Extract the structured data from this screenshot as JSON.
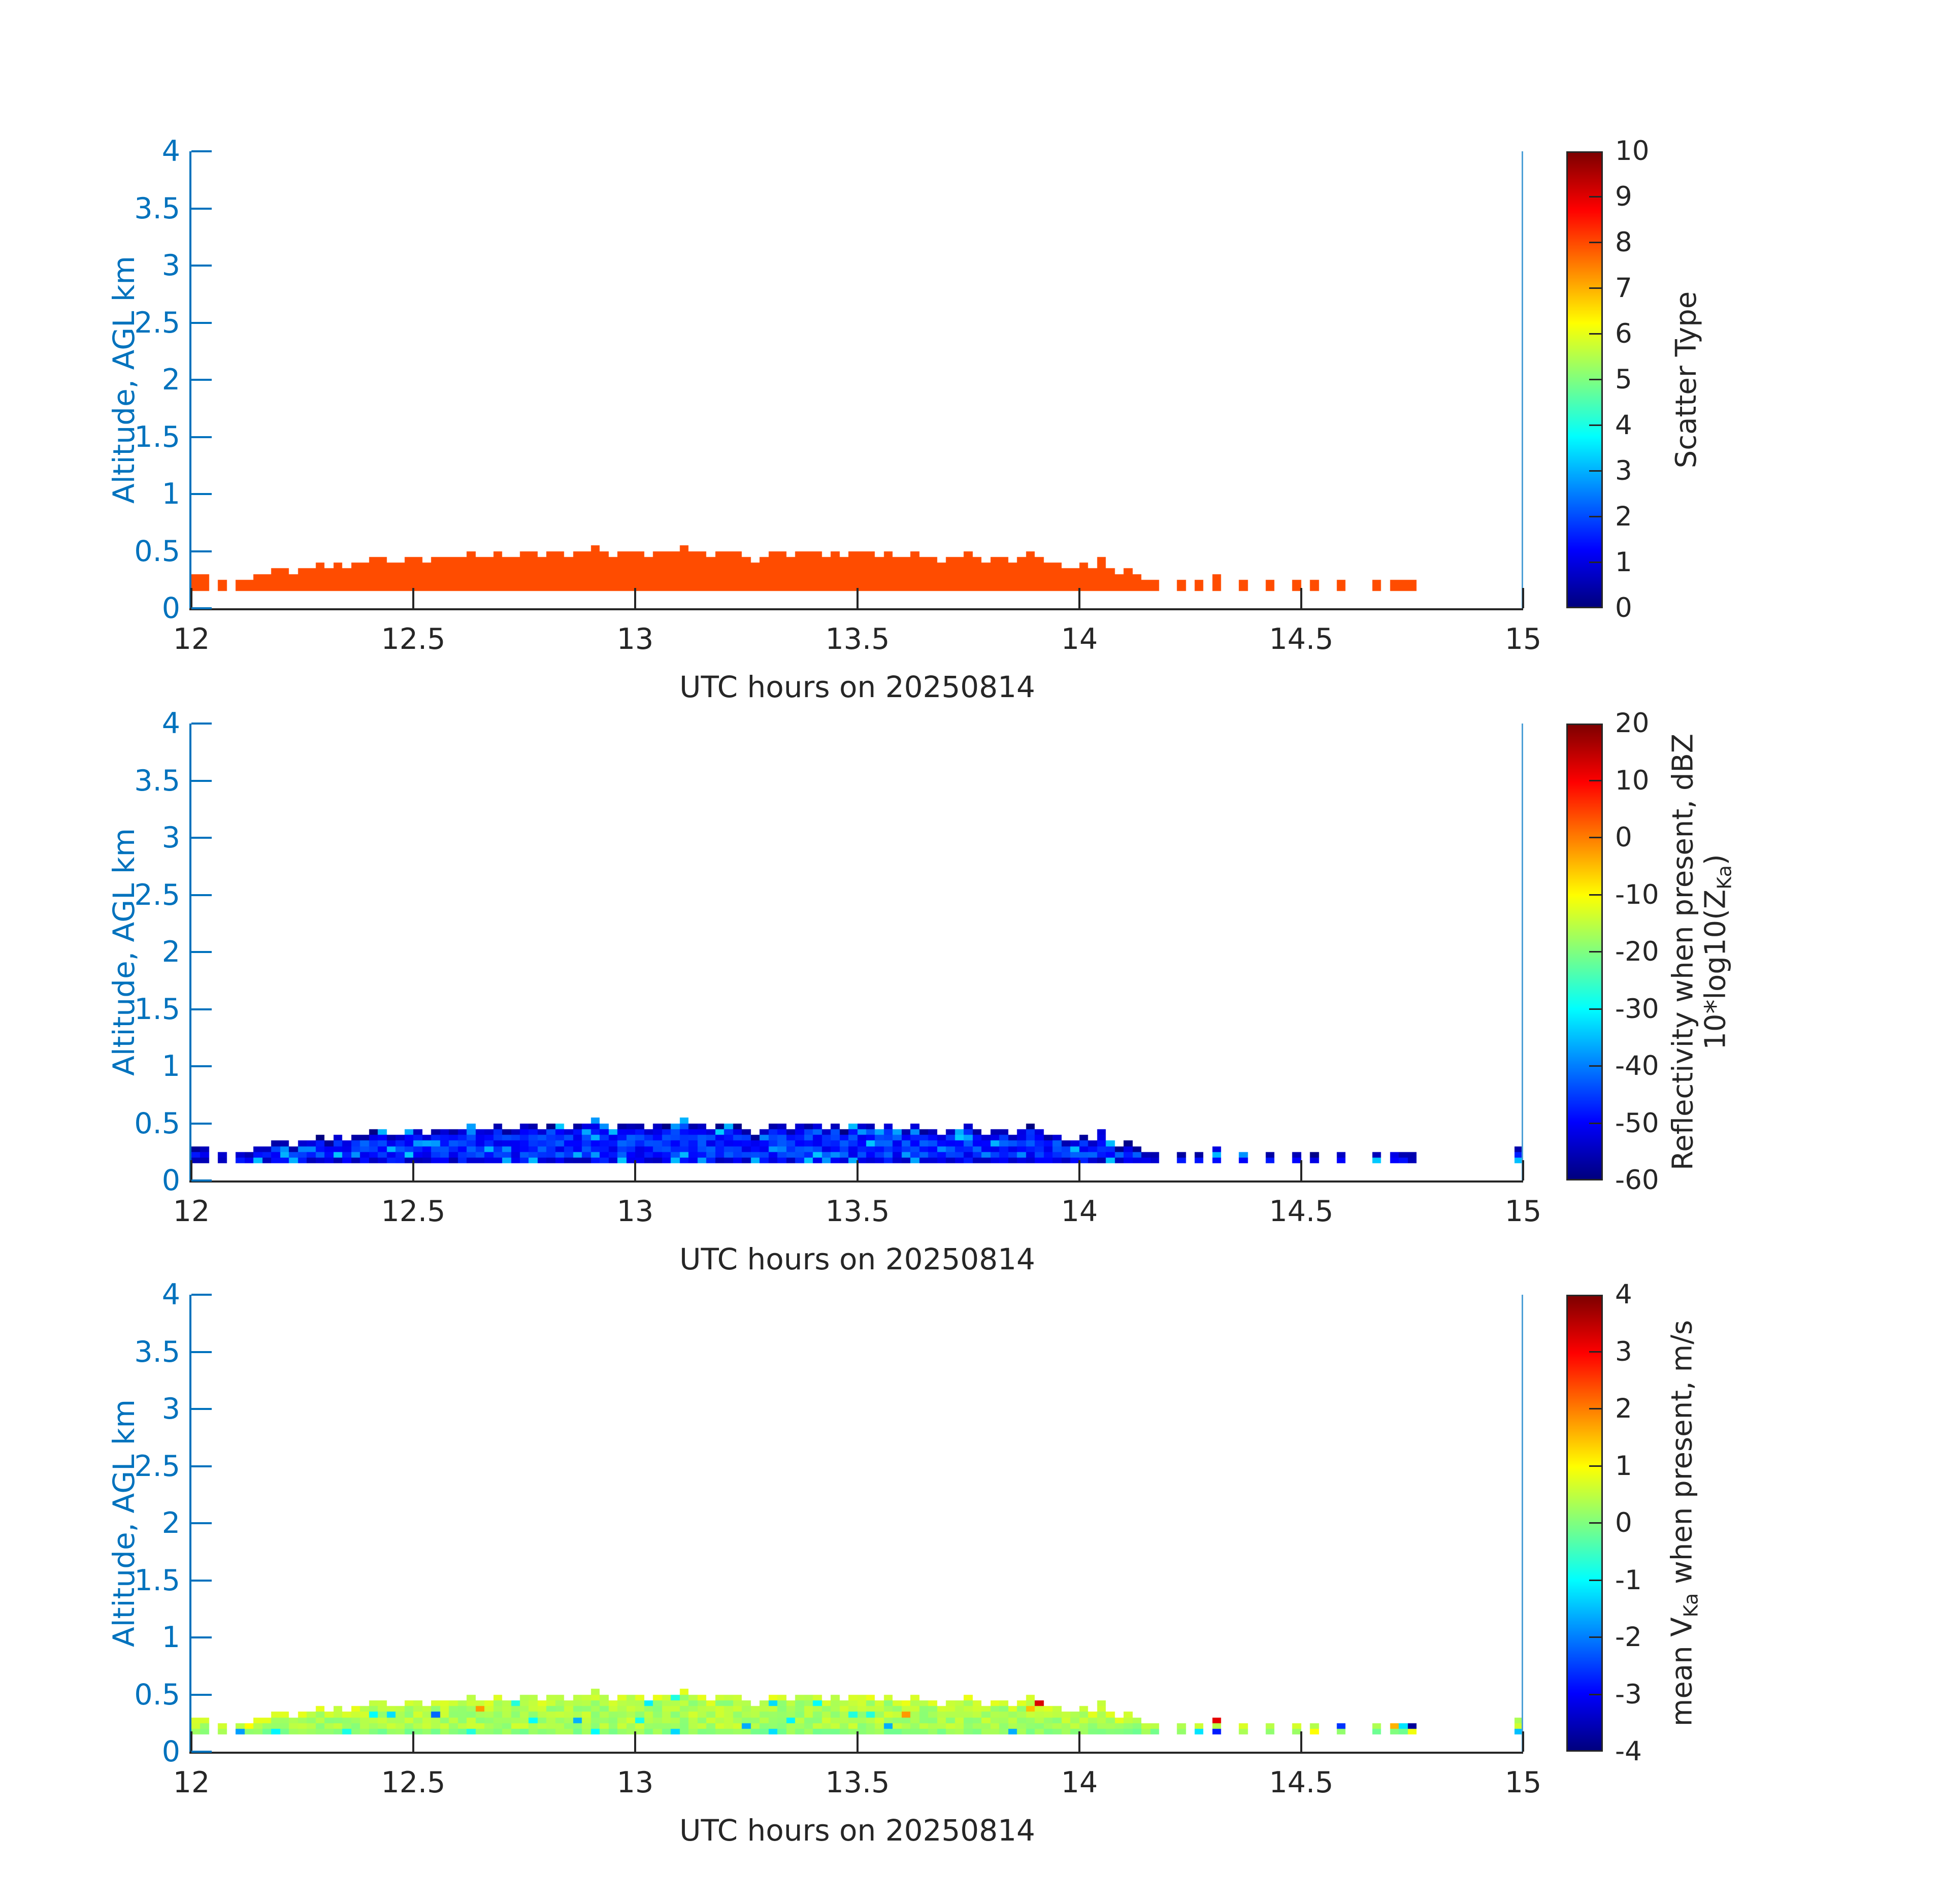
{
  "axes": {
    "x": {
      "label": "UTC hours on 20250814",
      "min": 12,
      "max": 15,
      "tick_values": [
        12,
        12.5,
        13,
        13.5,
        14,
        14.5,
        15
      ],
      "tick_labels": [
        "12",
        "12.5",
        "13",
        "13.5",
        "14",
        "14.5",
        "15"
      ],
      "color": "#262626"
    },
    "y": {
      "label": "Altitude, AGL km",
      "min": 0,
      "max": 4,
      "tick_values": [
        0,
        0.5,
        1,
        1.5,
        2,
        2.5,
        3,
        3.5,
        4
      ],
      "tick_labels": [
        "0",
        "0.5",
        "1",
        "1.5",
        "2",
        "2.5",
        "3",
        "3.5",
        "4"
      ],
      "color": "#0072BD"
    }
  },
  "chart_data": {
    "type": "heatmap",
    "colormap": "jet",
    "x": {
      "label": "UTC hours on 20250814",
      "range": [
        12,
        15
      ],
      "bin_hours": 0.02
    },
    "y": {
      "label": "Altitude, AGL km",
      "range": [
        0,
        4
      ],
      "bin_km": 0.05,
      "base_km": 0.15
    },
    "note": "columns = [UTC_hour_start, echo_top_km]; echo base is 0.15 km AGL for every occupied column; same occupancy mask for all three panels",
    "columns": [
      [
        12.0,
        0.3
      ],
      [
        12.02,
        0.3
      ],
      [
        12.06,
        0.25
      ],
      [
        12.1,
        0.25
      ],
      [
        12.12,
        0.25
      ],
      [
        12.14,
        0.3
      ],
      [
        12.16,
        0.3
      ],
      [
        12.18,
        0.35
      ],
      [
        12.2,
        0.35
      ],
      [
        12.22,
        0.3
      ],
      [
        12.24,
        0.35
      ],
      [
        12.26,
        0.35
      ],
      [
        12.28,
        0.4
      ],
      [
        12.3,
        0.35
      ],
      [
        12.32,
        0.4
      ],
      [
        12.34,
        0.35
      ],
      [
        12.36,
        0.4
      ],
      [
        12.38,
        0.4
      ],
      [
        12.4,
        0.45
      ],
      [
        12.42,
        0.45
      ],
      [
        12.44,
        0.4
      ],
      [
        12.46,
        0.4
      ],
      [
        12.48,
        0.45
      ],
      [
        12.5,
        0.45
      ],
      [
        12.52,
        0.4
      ],
      [
        12.54,
        0.45
      ],
      [
        12.56,
        0.45
      ],
      [
        12.58,
        0.45
      ],
      [
        12.6,
        0.45
      ],
      [
        12.62,
        0.5
      ],
      [
        12.64,
        0.45
      ],
      [
        12.66,
        0.45
      ],
      [
        12.68,
        0.5
      ],
      [
        12.7,
        0.45
      ],
      [
        12.72,
        0.45
      ],
      [
        12.74,
        0.5
      ],
      [
        12.76,
        0.5
      ],
      [
        12.78,
        0.45
      ],
      [
        12.8,
        0.5
      ],
      [
        12.82,
        0.5
      ],
      [
        12.84,
        0.45
      ],
      [
        12.86,
        0.5
      ],
      [
        12.88,
        0.5
      ],
      [
        12.9,
        0.55
      ],
      [
        12.92,
        0.5
      ],
      [
        12.94,
        0.45
      ],
      [
        12.96,
        0.5
      ],
      [
        12.98,
        0.5
      ],
      [
        13.0,
        0.5
      ],
      [
        13.02,
        0.45
      ],
      [
        13.04,
        0.5
      ],
      [
        13.06,
        0.5
      ],
      [
        13.08,
        0.5
      ],
      [
        13.1,
        0.55
      ],
      [
        13.12,
        0.5
      ],
      [
        13.14,
        0.5
      ],
      [
        13.16,
        0.45
      ],
      [
        13.18,
        0.5
      ],
      [
        13.2,
        0.5
      ],
      [
        13.22,
        0.5
      ],
      [
        13.24,
        0.45
      ],
      [
        13.26,
        0.4
      ],
      [
        13.28,
        0.45
      ],
      [
        13.3,
        0.5
      ],
      [
        13.32,
        0.5
      ],
      [
        13.34,
        0.45
      ],
      [
        13.36,
        0.5
      ],
      [
        13.38,
        0.5
      ],
      [
        13.4,
        0.5
      ],
      [
        13.42,
        0.45
      ],
      [
        13.44,
        0.5
      ],
      [
        13.46,
        0.45
      ],
      [
        13.48,
        0.5
      ],
      [
        13.5,
        0.5
      ],
      [
        13.52,
        0.5
      ],
      [
        13.54,
        0.45
      ],
      [
        13.56,
        0.5
      ],
      [
        13.58,
        0.45
      ],
      [
        13.6,
        0.45
      ],
      [
        13.62,
        0.5
      ],
      [
        13.64,
        0.45
      ],
      [
        13.66,
        0.45
      ],
      [
        13.68,
        0.4
      ],
      [
        13.7,
        0.45
      ],
      [
        13.72,
        0.45
      ],
      [
        13.74,
        0.5
      ],
      [
        13.76,
        0.45
      ],
      [
        13.78,
        0.4
      ],
      [
        13.8,
        0.45
      ],
      [
        13.82,
        0.45
      ],
      [
        13.84,
        0.4
      ],
      [
        13.86,
        0.45
      ],
      [
        13.88,
        0.5
      ],
      [
        13.9,
        0.45
      ],
      [
        13.92,
        0.4
      ],
      [
        13.94,
        0.4
      ],
      [
        13.96,
        0.35
      ],
      [
        13.98,
        0.35
      ],
      [
        14.0,
        0.4
      ],
      [
        14.02,
        0.35
      ],
      [
        14.04,
        0.45
      ],
      [
        14.06,
        0.35
      ],
      [
        14.08,
        0.3
      ],
      [
        14.1,
        0.35
      ],
      [
        14.12,
        0.3
      ],
      [
        14.14,
        0.25
      ],
      [
        14.16,
        0.25
      ],
      [
        14.22,
        0.25
      ],
      [
        14.26,
        0.25
      ],
      [
        14.3,
        0.3
      ],
      [
        14.36,
        0.25
      ],
      [
        14.42,
        0.25
      ],
      [
        14.48,
        0.25
      ],
      [
        14.52,
        0.25
      ],
      [
        14.58,
        0.25
      ],
      [
        14.66,
        0.25
      ],
      [
        14.7,
        0.25
      ],
      [
        14.72,
        0.25
      ],
      [
        14.74,
        0.25
      ]
    ],
    "extra_columns_panels_2_3": [
      [
        14.98,
        0.3
      ]
    ],
    "panels": [
      {
        "name": "scatter-type",
        "colorbar": {
          "label_lines": [
            [
              "Scatter Type"
            ]
          ],
          "min": 0,
          "max": 10,
          "tick_values": [
            0,
            1,
            2,
            3,
            4,
            5,
            6,
            7,
            8,
            9,
            10
          ],
          "tick_labels": [
            "0",
            "1",
            "2",
            "3",
            "4",
            "5",
            "6",
            "7",
            "8",
            "9",
            "10"
          ]
        },
        "values": {
          "mode": "constant",
          "value": 8
        }
      },
      {
        "name": "reflectivity",
        "colorbar": {
          "label_lines": [
            [
              "Reflectivity when present, dBZ"
            ],
            [
              "10*log10(Z",
              "Ka",
              ")"
            ]
          ],
          "min": -60,
          "max": 20,
          "tick_values": [
            -60,
            -50,
            -40,
            -30,
            -20,
            -10,
            0,
            10,
            20
          ],
          "tick_labels": [
            "-60",
            "-50",
            "-40",
            "-30",
            "-20",
            "-10",
            "0",
            "10",
            "20"
          ]
        },
        "values": {
          "mode": "random",
          "seed": 3,
          "top_row": [
            -60,
            -52
          ],
          "bottom_row": [
            -56,
            -47
          ],
          "mid": [
            -52,
            -42
          ],
          "outlier_p": 0.07,
          "outlier_range": [
            -40,
            -34
          ],
          "specials": [
            [
              12.9,
              0.5,
              -38
            ],
            [
              13.1,
              0.5,
              -36
            ],
            [
              12.44,
              0.25,
              -36
            ],
            [
              12.52,
              0.3,
              -37
            ],
            [
              12.54,
              0.3,
              -38
            ],
            [
              13.3,
              0.25,
              -38
            ],
            [
              13.74,
              0.35,
              -37
            ],
            [
              14.98,
              0.15,
              -35
            ]
          ]
        }
      },
      {
        "name": "mean-velocity",
        "colorbar": {
          "label_lines": [
            [
              "mean V",
              "Ka",
              " when present, m/s"
            ]
          ],
          "min": -4,
          "max": 4,
          "tick_values": [
            -4,
            -3,
            -2,
            -1,
            0,
            1,
            2,
            3,
            4
          ],
          "tick_labels": [
            "-4",
            "-3",
            "-2",
            "-1",
            "0",
            "1",
            "2",
            "3",
            "4"
          ]
        },
        "values": {
          "mode": "random",
          "seed": 9,
          "top_row": [
            0.35,
            0.85
          ],
          "bottom_row": [
            -0.15,
            0.35
          ],
          "mid": [
            0.05,
            0.65
          ],
          "outlier_p": 0.05,
          "outlier_range": [
            -1.8,
            -0.7
          ],
          "specials": [
            [
              12.12,
              0.2,
              1.0
            ],
            [
              12.3,
              0.35,
              -0.9
            ],
            [
              12.4,
              0.3,
              -1.0
            ],
            [
              12.54,
              0.3,
              -2.2
            ],
            [
              12.64,
              0.35,
              1.8
            ],
            [
              12.76,
              0.25,
              -1.0
            ],
            [
              13.6,
              0.3,
              1.8
            ],
            [
              13.88,
              0.35,
              1.5
            ],
            [
              13.9,
              0.4,
              3.3
            ],
            [
              14.3,
              0.25,
              3.2
            ],
            [
              14.3,
              0.15,
              -2.8
            ],
            [
              14.52,
              0.15,
              1.0
            ],
            [
              14.58,
              0.2,
              -2.6
            ],
            [
              14.7,
              0.2,
              1.6
            ],
            [
              14.72,
              0.2,
              -1.2
            ],
            [
              14.74,
              0.2,
              -3.8
            ],
            [
              14.74,
              0.15,
              0.9
            ],
            [
              14.98,
              0.15,
              -1.5
            ]
          ]
        }
      }
    ]
  }
}
